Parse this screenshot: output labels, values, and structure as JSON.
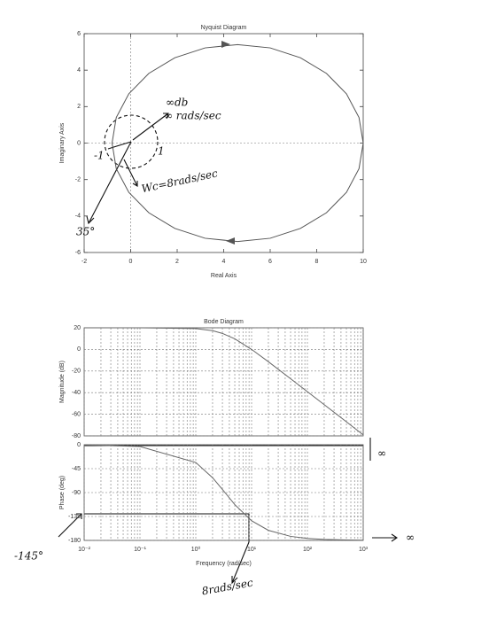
{
  "chart_data": [
    {
      "type": "line",
      "title": "Nyquist Diagram",
      "xlabel": "Real Axis",
      "ylabel": "Imaginary Axis",
      "xlim": [
        -2,
        10
      ],
      "ylim": [
        -6,
        6
      ],
      "xticks": [
        -2,
        0,
        2,
        4,
        6,
        8,
        10
      ],
      "yticks": [
        -6,
        -4,
        -2,
        0,
        2,
        4,
        6
      ],
      "grid": false,
      "color": "#555555",
      "x": [
        10,
        9.82,
        9.28,
        8.42,
        7.3,
        6.0,
        4.6,
        3.2,
        1.9,
        0.78,
        -0.08,
        -0.62,
        -0.8,
        -0.62,
        -0.08,
        0.78,
        1.9,
        3.2,
        4.6,
        6.0,
        7.3,
        8.42,
        9.28,
        9.82,
        10
      ],
      "values": [
        0,
        1.4,
        2.7,
        3.82,
        4.68,
        5.22,
        5.4,
        5.22,
        4.68,
        3.82,
        2.7,
        1.4,
        0,
        -1.4,
        -2.7,
        -3.82,
        -4.68,
        -5.22,
        -5.4,
        -5.22,
        -4.68,
        -3.82,
        -2.7,
        -1.4,
        0
      ],
      "annotations": [
        "∞db",
        "∞ rads/sec",
        "-1",
        "1",
        "Wc=8rads/sec",
        "35°"
      ]
    },
    {
      "type": "line",
      "title": "Bode Diagram",
      "ylabel": "Magnitude (dB)",
      "xscale": "log",
      "xtick_labels": false,
      "xlim": [
        0.01,
        1000
      ],
      "ylim": [
        -80,
        20
      ],
      "xticks": [
        0.01,
        0.1,
        1,
        10,
        100,
        1000
      ],
      "xminorticks": [
        0.02,
        0.03,
        0.04,
        0.05,
        0.06,
        0.07,
        0.08,
        0.09,
        0.2,
        0.3,
        0.4,
        0.5,
        0.6,
        0.7,
        0.8,
        0.9,
        2,
        3,
        4,
        5,
        6,
        7,
        8,
        9,
        20,
        30,
        40,
        50,
        60,
        70,
        80,
        90,
        200,
        300,
        400,
        500,
        600,
        700,
        800,
        900
      ],
      "yticks": [
        -80,
        -60,
        -40,
        -20,
        0,
        20
      ],
      "grid": true,
      "color": "#666666",
      "x": [
        0.01,
        0.1,
        1,
        2,
        3,
        5,
        10,
        20,
        50,
        100,
        200,
        500,
        1000
      ],
      "values": [
        20,
        20,
        19.25,
        17.3,
        14.8,
        9.8,
        0,
        -11.4,
        -27.1,
        -39.1,
        -51.1,
        -67.0,
        -79.1
      ]
    },
    {
      "type": "line",
      "ylabel": "Phase (deg)",
      "xlabel": "Frequency  (rad/sec)",
      "xscale": "log",
      "xlim": [
        0.01,
        1000
      ],
      "ylim": [
        -180,
        0
      ],
      "xticks": [
        {
          "value": 0.01,
          "label": "10⁻²"
        },
        {
          "value": 0.1,
          "label": "10⁻¹"
        },
        {
          "value": 1,
          "label": "10⁰"
        },
        {
          "value": 10,
          "label": "10¹"
        },
        {
          "value": 100,
          "label": "10²"
        },
        {
          "value": 1000,
          "label": "10³"
        }
      ],
      "xminorticks": [
        0.02,
        0.03,
        0.04,
        0.05,
        0.06,
        0.07,
        0.08,
        0.09,
        0.2,
        0.3,
        0.4,
        0.5,
        0.6,
        0.7,
        0.8,
        0.9,
        2,
        3,
        4,
        5,
        6,
        7,
        8,
        9,
        20,
        30,
        40,
        50,
        60,
        70,
        80,
        90,
        200,
        300,
        400,
        500,
        600,
        700,
        800,
        900
      ],
      "yticks": [
        -180,
        -135,
        -90,
        -45,
        0
      ],
      "grid": true,
      "color": "#666666",
      "x": [
        0.01,
        0.1,
        1,
        2,
        3,
        5,
        10,
        20,
        50,
        100,
        200,
        500,
        1000
      ],
      "values": [
        -0.34,
        -3.44,
        -33.4,
        -62.0,
        -84.0,
        -112.6,
        -143.1,
        -161.0,
        -172.4,
        -176.2,
        -178.1,
        -179.2,
        -179.6
      ],
      "annotations": [
        "-145°",
        "∞",
        "∞",
        "8rads/sec"
      ]
    }
  ]
}
